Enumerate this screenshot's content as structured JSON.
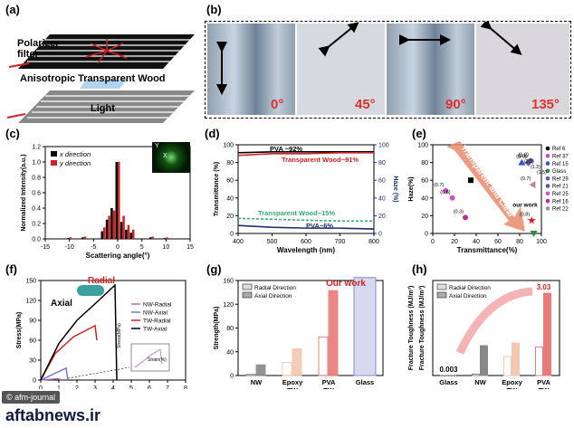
{
  "panels": {
    "a": {
      "label": "(a)",
      "polarizer_line1": "Polarizer",
      "polarizer_line2": "filter",
      "wood_label": "Anisotropic Transparent Wood",
      "light_label": "Light"
    },
    "b": {
      "label": "(b)",
      "photos": [
        {
          "angle": "0°",
          "arrow": "vertical"
        },
        {
          "angle": "45°",
          "arrow": "diagonal-up"
        },
        {
          "angle": "90°",
          "arrow": "horizontal"
        },
        {
          "angle": "135°",
          "arrow": "diagonal-down"
        }
      ]
    },
    "c": {
      "label": "(c)",
      "inset_label_y": "Y",
      "inset_label_x": "X"
    },
    "d": {
      "label": "(d)"
    },
    "e": {
      "label": "(e)",
      "banner": "Transparent and Clear"
    },
    "f": {
      "label": "(f)",
      "radial_label": "Radial",
      "axial_label": "Axial",
      "inset_x_label": "Strain(%)",
      "inset_y_label": "Stress(MPa)"
    },
    "g": {
      "label": "(g)",
      "callout": "Our work"
    },
    "h": {
      "label": "(h)"
    }
  },
  "colors": {
    "red": "#d32020",
    "teal": "#3aaa74",
    "navy": "#1c2f6e",
    "pink": "#e97a7a",
    "peach": "#f3c7b0",
    "lavender": "#8888cc",
    "gray": "#808080",
    "crown_black": "#000000"
  },
  "watermark": {
    "journal": "© afm-journal",
    "site": "aftabnews.ir"
  },
  "chart_data": [
    {
      "id": "c",
      "type": "bar",
      "title": "",
      "xlabel": "Scattering angle(°)",
      "ylabel": "Normalized Intensity(a.u.)",
      "xlim": [
        -15,
        15
      ],
      "ylim": [
        0,
        1.2
      ],
      "xticks": [
        "-15",
        "-10",
        "-5",
        "0",
        "5",
        "10",
        "15"
      ],
      "yticks": [
        "0.0",
        "0.2",
        "0.4",
        "0.6",
        "0.8",
        "1.0",
        "1.2"
      ],
      "x": [
        -10,
        -7,
        -3,
        -2,
        -1,
        0,
        1,
        2,
        3,
        7,
        10
      ],
      "series": [
        {
          "name": "x direction",
          "color": "#000000",
          "values": [
            0.01,
            0.02,
            0.1,
            0.25,
            0.4,
            1.0,
            0.22,
            0.12,
            0.08,
            0.02,
            0.01
          ]
        },
        {
          "name": "y direction",
          "color": "#d32020",
          "values": [
            0.02,
            0.03,
            0.15,
            0.3,
            0.37,
            1.0,
            0.3,
            0.18,
            0.12,
            0.03,
            0.02
          ]
        }
      ],
      "legend": "top-left"
    },
    {
      "id": "d",
      "type": "line",
      "xlabel": "Wavelength (nm)",
      "ylabel": "Transmittance (%)",
      "y2label": "Haze (%)",
      "xlim": [
        400,
        800
      ],
      "ylim": [
        0,
        100
      ],
      "y2lim": [
        0,
        100
      ],
      "xticks": [
        "400",
        "500",
        "600",
        "700",
        "800"
      ],
      "yticks": [
        "0",
        "20",
        "40",
        "60",
        "80",
        "100"
      ],
      "y2ticks": [
        "0",
        "20",
        "40",
        "60",
        "80",
        "100"
      ],
      "x": [
        400,
        500,
        600,
        700,
        800
      ],
      "series": [
        {
          "name": "PVA ~92%",
          "axis": "left",
          "color": "#000000",
          "values": [
            91,
            92,
            92,
            92,
            92
          ]
        },
        {
          "name": "Transparent Wood~91%",
          "axis": "left",
          "color": "#d32020",
          "values": [
            88,
            90,
            90,
            91,
            91
          ]
        },
        {
          "name": "Transparent Wood~15%",
          "axis": "right",
          "color": "#3aaa74",
          "values": [
            17,
            16,
            15,
            14,
            14
          ]
        },
        {
          "name": "PVA~6%",
          "axis": "right",
          "color": "#1c2f6e",
          "values": [
            9,
            7,
            6,
            6,
            5
          ]
        }
      ]
    },
    {
      "id": "e",
      "type": "scatter",
      "xlabel": "Transmittance(%)",
      "ylabel": "Haze(%)",
      "xlim": [
        0,
        100
      ],
      "ylim": [
        0,
        100
      ],
      "xticks": [
        "0",
        "20",
        "40",
        "60",
        "80",
        "100"
      ],
      "yticks": [
        "0",
        "20",
        "40",
        "60",
        "80",
        "100"
      ],
      "points": [
        {
          "name": "Ref 6",
          "x": 35,
          "y": 60,
          "color": "#000000",
          "marker": "square"
        },
        {
          "name": "Ref 37",
          "x": 12,
          "y": 48,
          "color": "#cc44cc",
          "marker": "circle",
          "note": "(0.7)"
        },
        {
          "name": "Ref 15",
          "x": 82,
          "y": 80,
          "color": "#3355cc",
          "marker": "triangle"
        },
        {
          "name": "Glass",
          "x": 93,
          "y": 0,
          "color": "#2a8a4a",
          "marker": "triangle-down"
        },
        {
          "name": "Ref 29",
          "x": 90,
          "y": 82,
          "color": "#6655aa",
          "marker": "circle",
          "note": "(1.0)"
        },
        {
          "name": "Ref 21",
          "x": 88,
          "y": 80,
          "color": "#555599",
          "marker": "diamond",
          "note": "(5.0)"
        },
        {
          "name": "Ref 25",
          "x": 18,
          "y": 40,
          "color": "#cc55cc",
          "marker": "circle",
          "note": "(0.6)"
        },
        {
          "name": "Ref 16",
          "x": 30,
          "y": 18,
          "color": "#aa3399",
          "marker": "circle",
          "note": "(0.3)"
        },
        {
          "name": "Ref 22",
          "x": 92,
          "y": 55,
          "color": "#b3889e",
          "marker": "triangle-left",
          "note": "(0.7)"
        },
        {
          "name": "our work",
          "x": 91,
          "y": 15,
          "color": "#d32020",
          "marker": "star",
          "note": "(0.8)"
        }
      ],
      "extra_notes": [
        "(0.1)",
        "(2.0)",
        "(1.3)",
        "(1.5)"
      ],
      "legend": "right"
    },
    {
      "id": "f",
      "type": "line",
      "xlabel": "Strain(%)",
      "ylabel": "Stress(MPa)",
      "xlim": [
        0,
        8
      ],
      "ylim": [
        0,
        150
      ],
      "xticks": [
        "0",
        "1",
        "2",
        "3",
        "4",
        "5",
        "6",
        "7",
        "8"
      ],
      "yticks": [
        "0",
        "30",
        "60",
        "90",
        "120",
        "150"
      ],
      "series": [
        {
          "name": "NW-Radial",
          "color": "#b26bc4",
          "x": [
            0,
            1.0,
            1.1
          ],
          "values": [
            0,
            2,
            0
          ]
        },
        {
          "name": "NW-Axial",
          "color": "#7777cc",
          "x": [
            0,
            1.4,
            1.5
          ],
          "values": [
            0,
            18,
            0
          ]
        },
        {
          "name": "TW-Radial",
          "color": "#d32020",
          "x": [
            0,
            0.8,
            1.8,
            3.0,
            3.1
          ],
          "values": [
            0,
            40,
            65,
            82,
            60
          ]
        },
        {
          "name": "TW-Axial",
          "color": "#000000",
          "x": [
            0,
            1.0,
            2.0,
            3.2,
            4.1,
            4.2
          ],
          "values": [
            0,
            55,
            90,
            120,
            143,
            0
          ]
        }
      ],
      "legend": "top-right"
    },
    {
      "id": "g",
      "type": "bar",
      "xlabel": "",
      "ylabel": "Strength(MPa)",
      "ylim": [
        0,
        160
      ],
      "yticks": [
        "0",
        "40",
        "80",
        "120",
        "160"
      ],
      "categories": [
        "NW",
        "Epoxy TW",
        "PVA TW",
        "Glass"
      ],
      "series": [
        {
          "name": "Radial Direction",
          "values": [
            2,
            22,
            65,
            165
          ]
        },
        {
          "name": "Axial Direction",
          "values": [
            18,
            45,
            143,
            165
          ]
        }
      ],
      "legend": "top-left"
    },
    {
      "id": "h",
      "type": "bar",
      "xlabel": "",
      "ylabel": "Fracture Toughness (MJ/m³)",
      "ylim": [
        0,
        3.5
      ],
      "categories": [
        "Glass",
        "NW",
        "Epoxy TW",
        "PVA TW"
      ],
      "series": [
        {
          "name": "Radial Direction",
          "values": [
            0.003,
            0.05,
            0.7,
            1.05
          ]
        },
        {
          "name": "Axial Direction",
          "values": [
            0.003,
            1.1,
            1.2,
            3.03
          ]
        }
      ],
      "labels": [
        "0.003",
        "3.03"
      ],
      "legend": "top-left"
    }
  ]
}
